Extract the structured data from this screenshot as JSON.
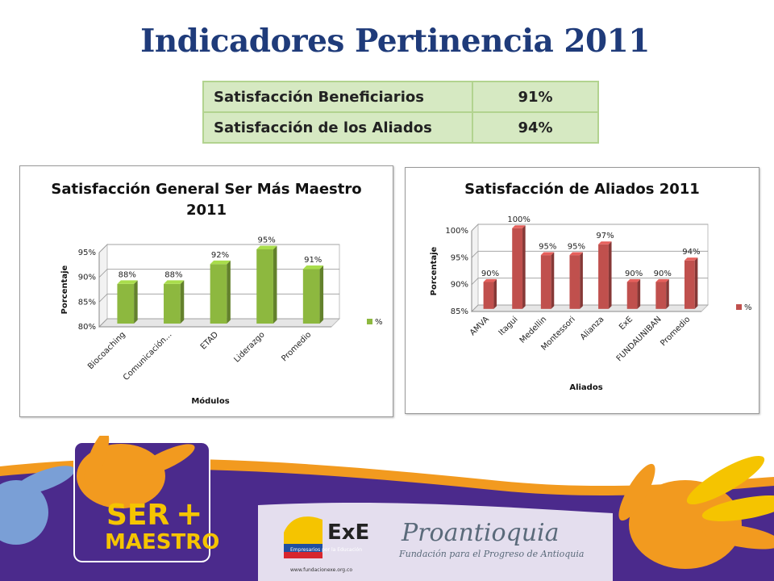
{
  "slide": {
    "title": "Indicadores Pertinencia 2011"
  },
  "summary_table": {
    "rows": [
      {
        "label": "Satisfacción Beneficiarios",
        "value": "91%"
      },
      {
        "label": "Satisfacción de los Aliados",
        "value": "94%"
      }
    ]
  },
  "chart_data": [
    {
      "type": "bar",
      "title": "Satisfacción General Ser Más Maestro 2011",
      "title_lines": [
        "Satisfacción General Ser Más Maestro",
        "2011"
      ],
      "xlabel": "Módulos",
      "ylabel": "Porcentaje",
      "categories": [
        "Biocoaching",
        "Comunicación...",
        "ETAD",
        "Liderazgo",
        "Promedio"
      ],
      "series": [
        {
          "name": "%",
          "values": [
            88,
            88,
            92,
            95,
            91
          ],
          "color": "#8db83f"
        }
      ],
      "data_labels": [
        "88%",
        "88%",
        "92%",
        "95%",
        "91%"
      ],
      "ylim": [
        80,
        95
      ],
      "yticks": [
        "80%",
        "85%",
        "90%",
        "95%"
      ],
      "grid": true,
      "legend": "right"
    },
    {
      "type": "bar",
      "title": "Satisfacción de Aliados 2011",
      "title_lines": [
        "Satisfacción de Aliados 2011"
      ],
      "xlabel": "Aliados",
      "ylabel": "Porcentaje",
      "categories": [
        "AMVA",
        "Itagui",
        "Medellin",
        "Montessori",
        "Alianza",
        "ExE",
        "FUNDAUNIBAN",
        "Promedio"
      ],
      "series": [
        {
          "name": "%",
          "values": [
            90,
            100,
            95,
            95,
            97,
            90,
            90,
            94
          ],
          "color": "#c0504d"
        }
      ],
      "data_labels": [
        "90%",
        "100%",
        "95%",
        "95%",
        "97%",
        "90%",
        "90%",
        "94%"
      ],
      "ylim": [
        85,
        100
      ],
      "yticks": [
        "85%",
        "90%",
        "95%",
        "100%"
      ],
      "grid": true,
      "legend": "right"
    }
  ],
  "footer": {
    "ser_logo": {
      "line1": "SER",
      "line2": "MAESTRO"
    },
    "exe_logo": {
      "mark": "ExE",
      "tagline": "Empresarios por la Educación",
      "url": "www.fundacionexe.org.co"
    },
    "proantioquia_logo": {
      "name": "Proantioquia",
      "tagline": "Fundación para el Progreso de Antioquia"
    },
    "colors": {
      "purple": "#4b2a8c",
      "orange": "#f29a1f",
      "yellow": "#f5c400"
    }
  }
}
